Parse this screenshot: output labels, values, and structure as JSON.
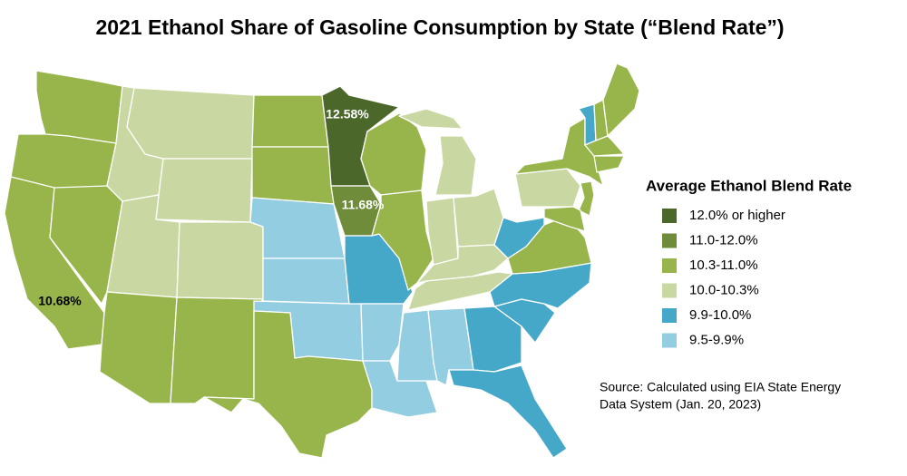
{
  "title": "2021 Ethanol Share of Gasoline Consumption by State (“Blend Rate”)",
  "legend": {
    "title": "Average Ethanol Blend Rate",
    "items": [
      {
        "label": "12.0% or higher",
        "color": "#4b672a"
      },
      {
        "label": "11.0-12.0%",
        "color": "#6e8c39"
      },
      {
        "label": "10.3-11.0%",
        "color": "#97b54b"
      },
      {
        "label": "10.0-10.3%",
        "color": "#c9d8a2"
      },
      {
        "label": "9.9-10.0%",
        "color": "#46a8c8"
      },
      {
        "label": "9.5-9.9%",
        "color": "#93cde1"
      }
    ]
  },
  "annotations": [
    "12.58%",
    "11.68%",
    "10.68%"
  ],
  "source": [
    "Source: Calculated using EIA State Energy",
    "Data System (Jan. 20, 2023)"
  ]
}
